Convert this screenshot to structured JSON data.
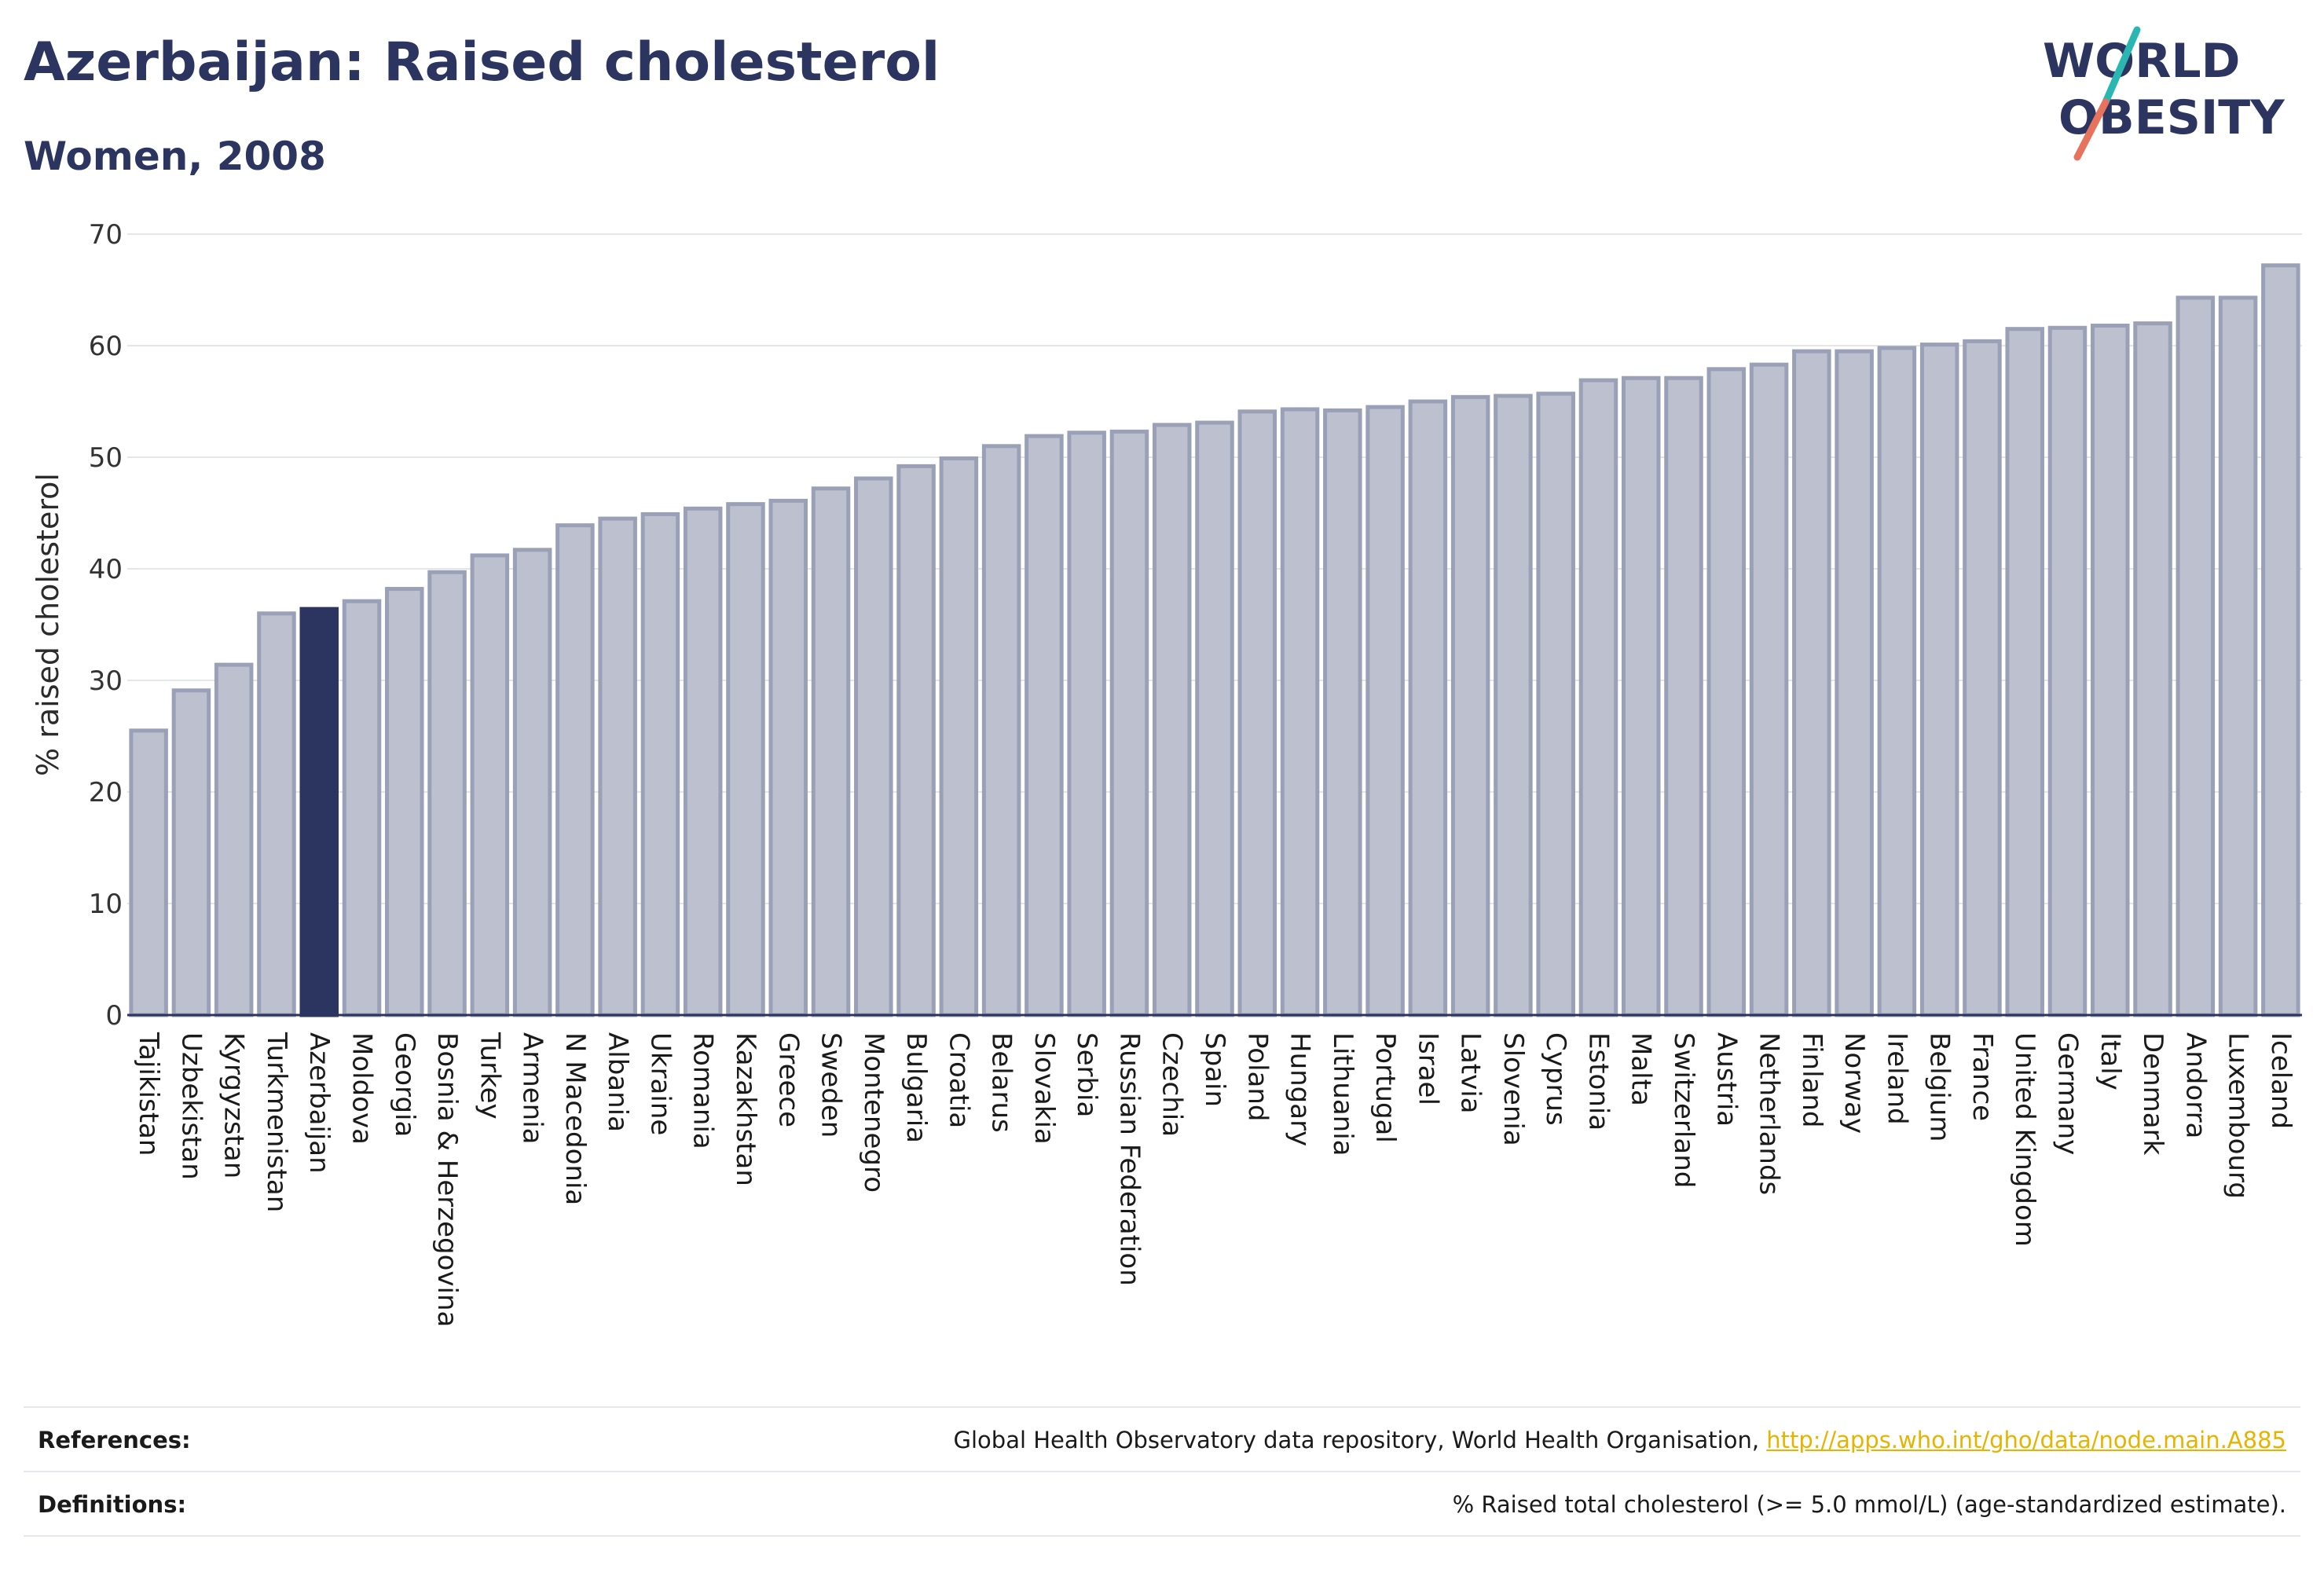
{
  "title": "Azerbaijan: Raised cholesterol",
  "subtitle": "Women, 2008",
  "logo": {
    "line1": "WORLD",
    "line2": "OBESITY"
  },
  "colors": {
    "highlight": "#2b3560",
    "bar_fill": "#bcc0cf",
    "bar_stroke": "#9aa0b6",
    "text": "#2b3560",
    "logo_accent_teal": "#2ab7b1",
    "logo_accent_coral": "#e8735d",
    "link": "#e6b400"
  },
  "chart_data": {
    "type": "bar",
    "ylabel": "% raised cholesterol",
    "xlabel": "",
    "ylim": [
      0,
      70
    ],
    "yticks": [
      0,
      10,
      20,
      30,
      40,
      50,
      60,
      70
    ],
    "grid": true,
    "highlight_category": "Azerbaijan",
    "categories": [
      "Tajikistan",
      "Uzbekistan",
      "Kyrgyzstan",
      "Turkmenistan",
      "Azerbaijan",
      "Moldova",
      "Georgia",
      "Bosnia & Herzegovina",
      "Turkey",
      "Armenia",
      "N Macedonia",
      "Albania",
      "Ukraine",
      "Romania",
      "Kazakhstan",
      "Greece",
      "Sweden",
      "Montenegro",
      "Bulgaria",
      "Croatia",
      "Belarus",
      "Slovakia",
      "Serbia",
      "Russian Federation",
      "Czechia",
      "Spain",
      "Poland",
      "Hungary",
      "Lithuania",
      "Portugal",
      "Israel",
      "Latvia",
      "Slovenia",
      "Cyprus",
      "Estonia",
      "Malta",
      "Switzerland",
      "Austria",
      "Netherlands",
      "Finland",
      "Norway",
      "Ireland",
      "Belgium",
      "France",
      "United Kingdom",
      "Germany",
      "Italy",
      "Denmark",
      "Andorra",
      "Luxembourg",
      "Iceland"
    ],
    "values": [
      25.5,
      29.1,
      31.4,
      36.0,
      36.4,
      37.1,
      38.2,
      39.7,
      41.2,
      41.7,
      43.9,
      44.5,
      44.9,
      45.4,
      45.8,
      46.1,
      47.2,
      48.1,
      49.2,
      49.9,
      51.0,
      51.9,
      52.2,
      52.3,
      52.9,
      53.1,
      54.1,
      54.3,
      54.2,
      54.5,
      55.0,
      55.4,
      55.5,
      55.7,
      56.9,
      57.1,
      57.1,
      57.9,
      58.3,
      59.5,
      59.5,
      59.8,
      60.1,
      60.4,
      61.5,
      61.6,
      61.8,
      62.0,
      64.3,
      64.3,
      67.2
    ]
  },
  "footer": {
    "references_label": "References:",
    "references_text": "Global Health Observatory data repository, World Health Organisation, ",
    "references_link": "http://apps.who.int/gho/data/node.main.A885",
    "definitions_label": "Definitions:",
    "definitions_text": "% Raised total cholesterol (>= 5.0 mmol/L) (age-standardized estimate)."
  }
}
